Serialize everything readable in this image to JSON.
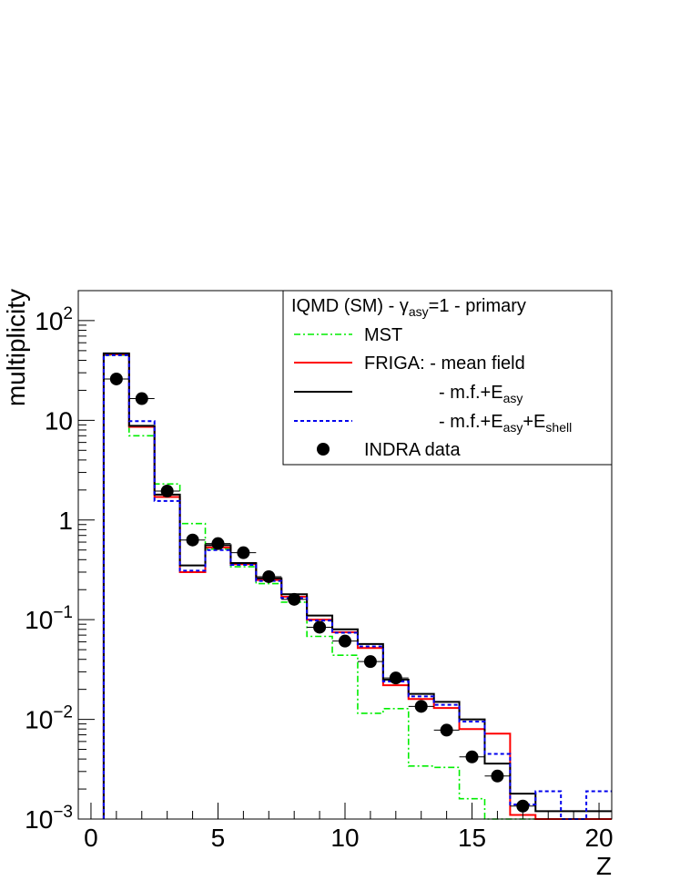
{
  "chart_data": {
    "type": "line",
    "title": "",
    "xlabel": "Z",
    "ylabel": "multiplicity",
    "xlim": [
      -0.5,
      20.5
    ],
    "ylim": [
      0.001,
      200
    ],
    "yscale": "log",
    "grid": false,
    "legend_position": "top-right",
    "x_ticks": [
      0,
      5,
      10,
      15,
      20
    ],
    "y_ticks": [
      {
        "value": 0.001,
        "base": "10",
        "exp": "−3"
      },
      {
        "value": 0.01,
        "base": "10",
        "exp": "−2"
      },
      {
        "value": 0.1,
        "base": "10",
        "exp": "−1"
      },
      {
        "value": 1,
        "base": "1",
        "exp": ""
      },
      {
        "value": 10,
        "base": "10",
        "exp": ""
      },
      {
        "value": 100,
        "base": "10",
        "exp": "2"
      }
    ],
    "bin_edges": [
      0.5,
      1.5,
      2.5,
      3.5,
      4.5,
      5.5,
      6.5,
      7.5,
      8.5,
      9.5,
      10.5,
      11.5,
      12.5,
      13.5,
      14.5,
      15.5,
      16.5,
      17.5,
      18.5,
      19.5,
      20.5
    ],
    "legend_header": {
      "text": "IQMD (SM) - γ",
      "sub": "asy",
      "after": "=1 - primary"
    },
    "series": [
      {
        "key": "mst",
        "legend": [
          {
            "t": "MST"
          }
        ],
        "color": "#00ee00",
        "dash": "7,3,2,3",
        "values": [
          45,
          7.0,
          2.3,
          0.92,
          0.51,
          0.34,
          0.23,
          0.15,
          0.068,
          0.044,
          0.0115,
          0.0128,
          0.0034,
          0.0033,
          0.0016,
          0.001,
          0.001,
          0.001,
          0.001,
          0.001
        ]
      },
      {
        "key": "friga_mf",
        "legend": [
          {
            "t": "FRIGA: - mean field"
          }
        ],
        "color": "#ff0000",
        "dash": "",
        "values": [
          46,
          8.6,
          1.7,
          0.3,
          0.53,
          0.36,
          0.25,
          0.17,
          0.1,
          0.075,
          0.052,
          0.022,
          0.016,
          0.013,
          0.008,
          0.0072,
          0.0011,
          0.001,
          0.001,
          0.001
        ]
      },
      {
        "key": "friga_mf_easy",
        "legend": [
          {
            "t": "- m.f.+E"
          },
          {
            "t": "asy",
            "sub": true
          }
        ],
        "color": "#000000",
        "dash": "",
        "values": [
          47,
          8.8,
          1.8,
          0.35,
          0.56,
          0.37,
          0.26,
          0.18,
          0.11,
          0.08,
          0.057,
          0.025,
          0.018,
          0.015,
          0.01,
          0.0036,
          0.0018,
          0.0012,
          0.0012,
          0.0012
        ]
      },
      {
        "key": "friga_mf_easy_eshell",
        "legend": [
          {
            "t": "- m.f.+E"
          },
          {
            "t": "asy",
            "sub": true
          },
          {
            "t": "+E"
          },
          {
            "t": "shell",
            "sub": true
          }
        ],
        "color": "#0000ee",
        "dash": "4,3",
        "values": [
          45,
          9.8,
          1.55,
          0.31,
          0.5,
          0.355,
          0.245,
          0.165,
          0.098,
          0.074,
          0.054,
          0.024,
          0.017,
          0.014,
          0.0095,
          0.0045,
          0.0014,
          0.0019,
          0.001,
          0.0019
        ]
      }
    ],
    "points": {
      "legend": [
        {
          "t": "INDRA data"
        }
      ],
      "x": [
        1,
        2,
        3,
        4,
        5,
        6,
        7,
        8,
        9,
        10,
        11,
        12,
        13,
        14,
        15,
        16,
        17
      ],
      "y": [
        26,
        16.5,
        1.95,
        0.63,
        0.58,
        0.47,
        0.27,
        0.16,
        0.084,
        0.061,
        0.038,
        0.026,
        0.0135,
        0.0078,
        0.0042,
        0.0027,
        0.00135
      ]
    }
  }
}
